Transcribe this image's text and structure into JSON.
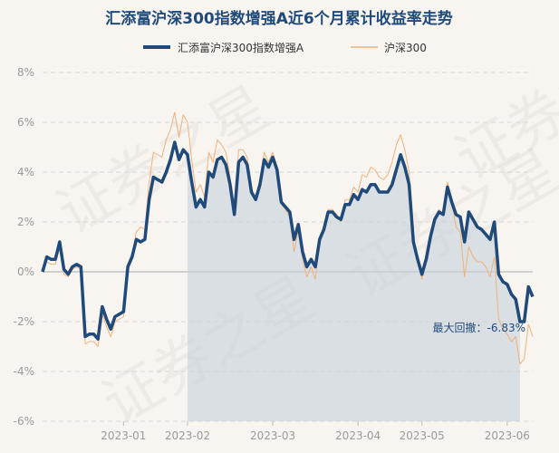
{
  "chart_data": {
    "type": "line",
    "title": "汇添富沪深300指数增强A近6个月累计收益率走势",
    "xlabel": "",
    "ylabel": "",
    "ylim": [
      -6,
      8
    ],
    "yticks": [
      "8%",
      "6%",
      "4%",
      "2%",
      "0%",
      "-2%",
      "-4%",
      "-6%"
    ],
    "ytick_values": [
      8,
      6,
      4,
      2,
      0,
      -2,
      -4,
      -6
    ],
    "xticks": [
      {
        "label": "2023-01",
        "index": 19
      },
      {
        "label": "2023-02",
        "index": 34
      },
      {
        "label": "2023-03",
        "index": 54
      },
      {
        "label": "2023-04",
        "index": 74
      },
      {
        "label": "2023-05",
        "index": 89
      },
      {
        "label": "2023-06",
        "index": 109
      }
    ],
    "grid": true,
    "legend_position": "top",
    "series": [
      {
        "name": "汇添富沪深300指数增强A",
        "color": "#1f4a7a",
        "values": [
          0.0,
          0.6,
          0.5,
          0.5,
          1.2,
          0.1,
          -0.1,
          0.2,
          0.3,
          0.2,
          -2.6,
          -2.5,
          -2.5,
          -2.7,
          -1.4,
          -1.9,
          -2.3,
          -1.8,
          -1.7,
          -1.6,
          0.2,
          0.6,
          1.3,
          1.2,
          1.3,
          2.9,
          3.8,
          3.7,
          3.6,
          4.0,
          4.5,
          5.2,
          4.5,
          4.9,
          4.7,
          3.6,
          2.6,
          2.9,
          2.6,
          4.0,
          3.8,
          4.5,
          4.6,
          4.3,
          3.5,
          2.3,
          4.4,
          4.6,
          4.3,
          3.2,
          2.9,
          3.5,
          4.5,
          4.2,
          4.6,
          4.1,
          2.8,
          2.6,
          2.4,
          1.3,
          1.9,
          0.8,
          0.2,
          0.5,
          0.2,
          1.3,
          1.7,
          2.4,
          2.4,
          2.2,
          2.1,
          2.7,
          2.7,
          3.1,
          2.9,
          3.3,
          3.2,
          3.5,
          3.5,
          3.2,
          3.2,
          3.2,
          3.5,
          4.1,
          4.7,
          4.2,
          3.5,
          1.2,
          0.5,
          -0.1,
          0.5,
          1.4,
          2.1,
          2.4,
          2.3,
          3.4,
          2.8,
          2.3,
          2.2,
          1.2,
          2.4,
          2.1,
          1.8,
          1.7,
          1.5,
          1.3,
          2.0,
          -0.1,
          -0.4,
          -0.5,
          -0.9,
          -1.1,
          -2.0,
          -2.0,
          -0.6,
          -1.0
        ]
      },
      {
        "name": "沪深300",
        "color": "#efb27c",
        "values": [
          0.0,
          0.4,
          0.3,
          0.3,
          1.0,
          -0.1,
          -0.2,
          0.1,
          0.2,
          0.1,
          -2.9,
          -2.8,
          -2.8,
          -3.0,
          -1.7,
          -2.2,
          -2.6,
          -2.0,
          -1.9,
          -1.8,
          0.1,
          0.7,
          1.6,
          1.8,
          1.7,
          3.6,
          4.8,
          4.7,
          4.6,
          5.3,
          5.7,
          6.4,
          5.4,
          6.3,
          6.0,
          4.5,
          3.2,
          3.5,
          3.0,
          4.8,
          4.4,
          5.3,
          5.1,
          4.8,
          3.8,
          2.4,
          4.9,
          4.9,
          4.6,
          3.3,
          3.0,
          3.7,
          4.8,
          4.4,
          4.8,
          4.2,
          2.7,
          2.5,
          2.2,
          0.8,
          1.7,
          0.5,
          -0.2,
          0.2,
          -0.3,
          1.2,
          1.7,
          2.5,
          2.5,
          2.3,
          2.0,
          2.9,
          2.9,
          3.4,
          3.2,
          3.9,
          3.8,
          4.2,
          4.1,
          3.8,
          3.7,
          3.9,
          4.4,
          5.1,
          5.5,
          4.9,
          4.0,
          1.3,
          0.4,
          -0.3,
          0.4,
          1.4,
          2.1,
          2.5,
          2.3,
          3.6,
          2.8,
          1.8,
          1.6,
          -0.2,
          1.0,
          0.6,
          0.4,
          0.4,
          0.2,
          -0.2,
          0.6,
          -1.9,
          -2.3,
          -2.5,
          -2.8,
          -2.6,
          -3.7,
          -3.5,
          -2.1,
          -2.6
        ]
      }
    ],
    "shade_start_index": 34,
    "drawdown_label": "最大回撤：-6.83%",
    "watermark": "证券之星",
    "background": "#f8f4ef",
    "shade_color": "#c6d1da"
  }
}
